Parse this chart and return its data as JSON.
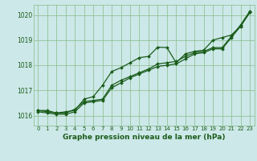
{
  "title": "Graphe pression niveau de la mer (hPa)",
  "bg_color": "#cce8e8",
  "plot_bg_color": "#cce8e8",
  "grid_color": "#88bb88",
  "line_color": "#1a5c1a",
  "xlim_min": -0.5,
  "xlim_max": 23.5,
  "ylim_min": 1015.6,
  "ylim_max": 1020.4,
  "yticks": [
    1016,
    1017,
    1018,
    1019,
    1020
  ],
  "xticks": [
    0,
    1,
    2,
    3,
    4,
    5,
    6,
    7,
    8,
    9,
    10,
    11,
    12,
    13,
    14,
    15,
    16,
    17,
    18,
    19,
    20,
    21,
    22,
    23
  ],
  "series1_x": [
    0,
    1,
    2,
    3,
    4,
    5,
    6,
    7,
    8,
    9,
    10,
    11,
    12,
    13,
    14,
    15,
    16,
    17,
    18,
    19,
    20,
    21,
    22,
    23
  ],
  "series1_y": [
    1016.2,
    1016.2,
    1016.1,
    1016.15,
    1016.2,
    1016.65,
    1016.75,
    1017.2,
    1017.75,
    1017.9,
    1018.1,
    1018.3,
    1018.35,
    1018.72,
    1018.7,
    1018.1,
    1018.45,
    1018.55,
    1018.6,
    1019.0,
    1019.1,
    1019.2,
    1019.55,
    1020.1
  ],
  "series2_x": [
    0,
    1,
    2,
    3,
    4,
    5,
    6,
    7,
    8,
    9,
    10,
    11,
    12,
    13,
    14,
    15,
    16,
    17,
    18,
    19,
    20,
    21,
    22,
    23
  ],
  "series2_y": [
    1016.2,
    1016.15,
    1016.1,
    1016.1,
    1016.25,
    1016.55,
    1016.6,
    1016.65,
    1017.2,
    1017.4,
    1017.55,
    1017.7,
    1017.85,
    1018.05,
    1018.1,
    1018.15,
    1018.35,
    1018.5,
    1018.55,
    1018.7,
    1018.7,
    1019.15,
    1019.6,
    1020.15
  ],
  "series3_x": [
    0,
    1,
    2,
    3,
    4,
    5,
    6,
    7,
    8,
    9,
    10,
    11,
    12,
    13,
    14,
    15,
    16,
    17,
    18,
    19,
    20,
    21,
    22,
    23
  ],
  "series3_y": [
    1016.15,
    1016.1,
    1016.05,
    1016.05,
    1016.15,
    1016.5,
    1016.55,
    1016.6,
    1017.1,
    1017.3,
    1017.5,
    1017.65,
    1017.8,
    1017.95,
    1018.0,
    1018.05,
    1018.25,
    1018.45,
    1018.5,
    1018.65,
    1018.65,
    1019.1,
    1019.55,
    1020.1
  ],
  "ylabel_fontsize": 5.5,
  "xlabel_fontsize": 6.5,
  "tick_fontsize": 5.0,
  "title_fontsize": 7.0,
  "linewidth": 0.9,
  "markersize": 2.0
}
